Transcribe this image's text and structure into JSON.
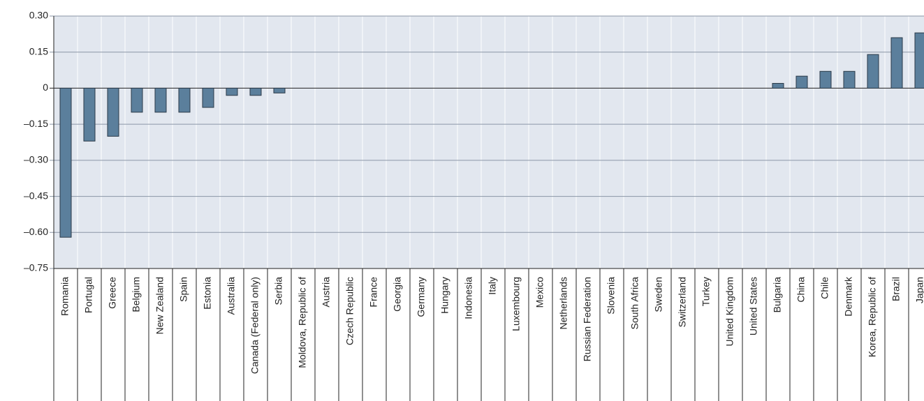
{
  "chart_data": {
    "type": "bar",
    "categories": [
      "Romania",
      "Portugal",
      "Greece",
      "Belgium",
      "New Zealand",
      "Spain",
      "Estonia",
      "Australia",
      "Canada (Federal only)",
      "Serbia",
      "Moldova, Republic of",
      "Austria",
      "Czech Republic",
      "France",
      "Georgia",
      "Germany",
      "Hungary",
      "Indonesia",
      "Italy",
      "Luxembourg",
      "Mexico",
      "Netherlands",
      "Russian Federation",
      "Slovenia",
      "South Africa",
      "Sweden",
      "Switzerland",
      "Turkey",
      "United Kingdom",
      "United States",
      "Bulgaria",
      "China",
      "Chile",
      "Denmark",
      "Korea, Republic of",
      "Brazil",
      "Japan"
    ],
    "values": [
      -0.62,
      -0.22,
      -0.2,
      -0.1,
      -0.1,
      -0.1,
      -0.08,
      -0.03,
      -0.03,
      -0.02,
      0,
      0,
      0,
      0,
      0,
      0,
      0,
      0,
      0,
      0,
      0,
      0,
      0,
      0,
      0,
      0,
      0,
      0,
      0,
      0,
      0.02,
      0.05,
      0.07,
      0.07,
      0.14,
      0.21,
      0.23
    ],
    "color": "#5b7f9c",
    "ylim": [
      -0.75,
      0.3
    ],
    "yticks": [
      {
        "value": 0.3,
        "label": "0.30"
      },
      0.15,
      0,
      {
        "value": -0.15,
        "label": "–0.15"
      },
      {
        "value": -0.3,
        "label": "–0.30"
      },
      {
        "value": -0.45,
        "label": "–0.45"
      },
      {
        "value": -0.6,
        "label": "–0.60"
      },
      {
        "value": -0.75,
        "label": "–0.75"
      }
    ],
    "grid": true
  }
}
